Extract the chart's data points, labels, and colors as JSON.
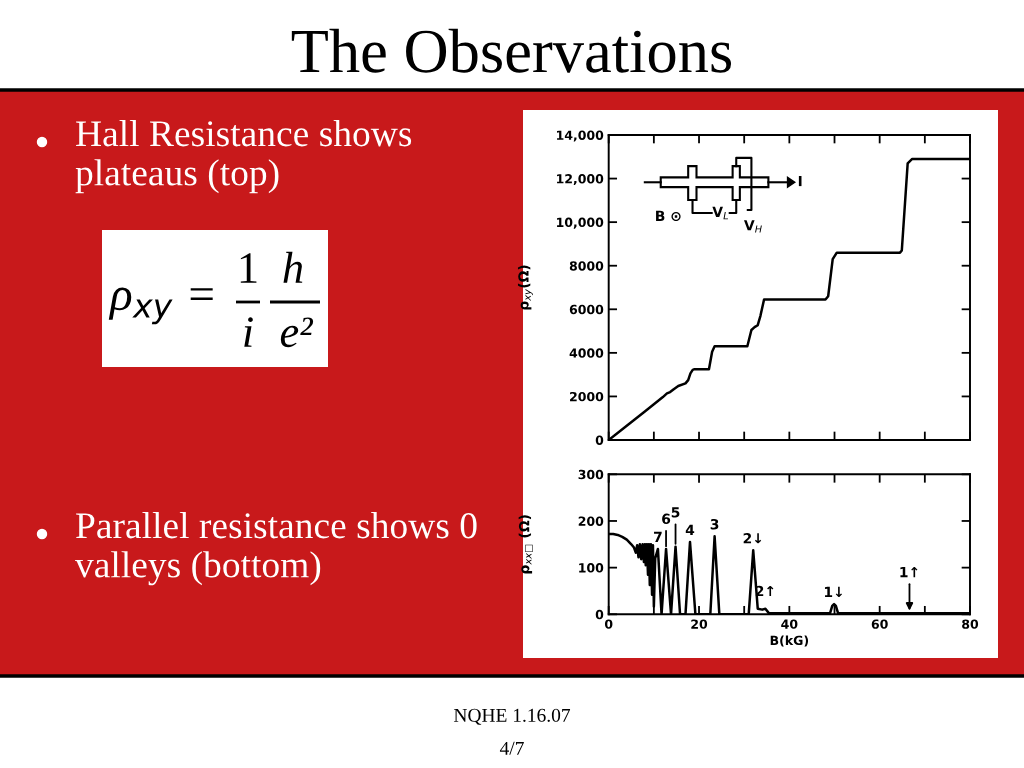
{
  "chart_data": [
    {
      "type": "line",
      "title": "The Observations",
      "ylabel": "ρ$_{xy}$(Ω)",
      "x": [
        0,
        4,
        8,
        10,
        12,
        12.9,
        13.6,
        14.4,
        15.4,
        17.0,
        17.6,
        18.1,
        18.6,
        19.0,
        22.2,
        22.9,
        23.45,
        30.7,
        31.6,
        32.3,
        33.0,
        33.6,
        34.4,
        48.0,
        48.6,
        49.6,
        50.5,
        64.5,
        64.9,
        66.2,
        67.2,
        80
      ],
      "series": [
        {
          "color": "#000000",
          "values": [
            0,
            650,
            1310,
            1640,
            1970,
            2140,
            2200,
            2330,
            2480,
            2600,
            2750,
            3060,
            3220,
            3250,
            3250,
            4050,
            4300,
            4300,
            5050,
            5180,
            5270,
            5700,
            6450,
            6450,
            6600,
            8300,
            8600,
            8600,
            8700,
            12700,
            12900,
            12900
          ]
        }
      ],
      "xlim": [
        0,
        80
      ],
      "xticks": [
        0,
        10,
        20,
        30,
        40,
        50,
        60,
        70,
        80
      ],
      "ylim": [
        0,
        14000
      ],
      "yticks": [
        0,
        2000,
        4000,
        6000,
        8000,
        {
          "value": 10000,
          "label": "10,000"
        },
        {
          "value": 12000,
          "label": "12,000"
        },
        {
          "value": 14000,
          "label": "14,000"
        }
      ],
      "tick_labels": "y",
      "annotations": [
        "Hall Resistance shows\nplateaus (top)",
        "Parallel resistance shows 0\nvalleys (bottom)",
        "ρ$_{xy}$ =",
        "1",
        "i",
        "h",
        "e²",
        "NQHE 1.16.07",
        "4/7",
        "B ⊙",
        "V$_{L}$",
        "V$_{H}$",
        "I"
      ]
    },
    {
      "type": "line",
      "xlabel": "B(kG)",
      "ylabel": "ρ$_{xx□}$ (Ω)",
      "x": [
        0,
        1,
        2,
        3,
        4,
        5,
        5.6,
        6.0,
        6.3,
        6.6,
        6.9,
        7.2,
        7.5,
        7.8,
        8.0,
        8.2,
        8.45,
        8.7,
        8.9,
        9.1,
        9.35,
        9.6,
        9.8,
        10.0,
        10.3,
        10.9,
        11.7,
        12.7,
        13.8,
        14.8,
        15.8,
        17.0,
        18.0,
        19.2,
        22.5,
        23.45,
        24.5,
        31.0,
        32.0,
        33.0,
        34.0,
        34.7,
        35.5,
        49.0,
        49.5,
        49.9,
        50.3,
        50.8,
        80
      ],
      "series": [
        {
          "color": "#000000",
          "values": [
            172,
            172,
            170,
            166,
            160,
            150,
            143,
            132,
            148,
            122,
            150,
            118,
            150,
            112,
            150,
            105,
            150,
            85,
            150,
            63,
            150,
            42,
            148,
            17,
            120,
            140,
            0,
            140,
            0,
            145,
            0,
            0,
            155,
            0,
            0,
            167,
            0,
            0,
            137,
            12,
            10,
            12,
            2,
            2,
            18,
            22,
            18,
            2,
            2
          ]
        }
      ],
      "xlim": [
        0,
        80
      ],
      "xticks": [
        0,
        {
          "value": 10,
          "label": null
        },
        20,
        {
          "value": 30,
          "label": null
        },
        40,
        {
          "value": 50,
          "label": null
        },
        60,
        {
          "value": 70,
          "label": null
        },
        80
      ],
      "ylim": [
        0,
        300
      ],
      "yticks": [
        0,
        100,
        200,
        300
      ],
      "annotations": [
        {
          "text": "7",
          "x": 10.9,
          "y": 140
        },
        {
          "text": "6",
          "x": 12.7,
          "y": 140
        },
        {
          "text": "5",
          "x": 14.8,
          "y": 145
        },
        {
          "text": "4",
          "x": 18.0,
          "y": 155
        },
        {
          "text": "3",
          "x": 23.45,
          "y": 167
        },
        {
          "text": "2↓",
          "x": 32.0,
          "y": 137
        },
        {
          "text": "2↑",
          "x": 34.7,
          "y": 12
        },
        {
          "text": "1↓",
          "x": 49.9,
          "y": 22
        },
        {
          "text": "1↑",
          "x": 66.6,
          "y": 2
        }
      ]
    }
  ]
}
